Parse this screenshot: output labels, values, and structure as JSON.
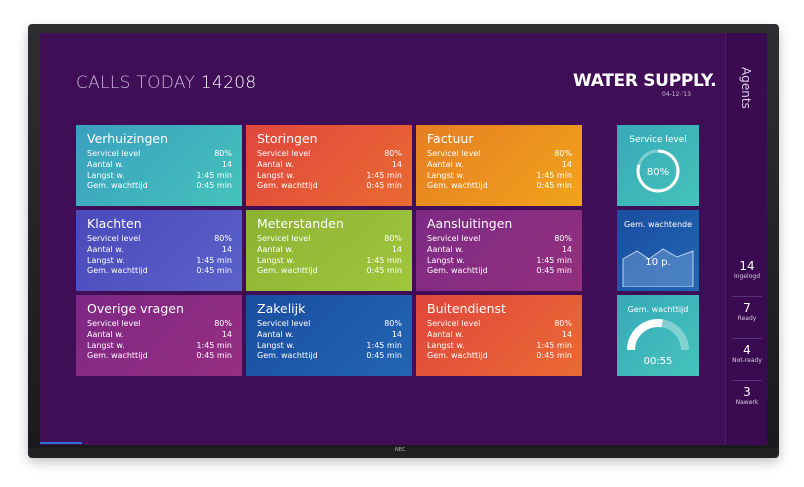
{
  "header": {
    "title_prefix": "CALLS TODAY",
    "title_count": "14208"
  },
  "logo": {
    "text": "WATER SUPPLY.",
    "date": "04-12-'13"
  },
  "monitor_brand": "NEC",
  "labels": {
    "service": "Servicel level",
    "count": "Aantal w.",
    "longest": "Langst w.",
    "avg": "Gem. wachttijd"
  },
  "tiles": [
    {
      "name": "Verhuizingen",
      "service": "80%",
      "count": "14",
      "longest": "1:45 min",
      "avg": "0:45 min",
      "color": "#3fb7be"
    },
    {
      "name": "Storingen",
      "service": "80%",
      "count": "14",
      "longest": "1:45 min",
      "avg": "0:45 min",
      "color": "#e2503a"
    },
    {
      "name": "Factuur",
      "service": "80%",
      "count": "14",
      "longest": "1:45 min",
      "avg": "0:45 min",
      "color": "#eb8f1e"
    },
    {
      "name": "Klachten",
      "service": "80%",
      "count": "14",
      "longest": "1:45 min",
      "avg": "0:45 min",
      "color": "#4a4fbf"
    },
    {
      "name": "Meterstanden",
      "service": "80%",
      "count": "14",
      "longest": "1:45 min",
      "avg": "0:45 min",
      "color": "#8fb836"
    },
    {
      "name": "Aansluitingen",
      "service": "80%",
      "count": "14",
      "longest": "1:45 min",
      "avg": "0:45 min",
      "color": "#8c2f82"
    },
    {
      "name": "Overige vragen",
      "service": "80%",
      "count": "14",
      "longest": "1:45 min",
      "avg": "0:45 min",
      "color": "#8a2a86"
    },
    {
      "name": "Zakelijk",
      "service": "80%",
      "count": "14",
      "longest": "1:45 min",
      "avg": "0:45 min",
      "color": "#1d5aa8"
    },
    {
      "name": "Buitendienst",
      "service": "80%",
      "count": "14",
      "longest": "1:45 min",
      "avg": "0:45 min",
      "color": "#e2503a"
    }
  ],
  "stats": {
    "service_level": {
      "label": "Service level",
      "value": "80%",
      "fraction": 0.8,
      "color": "#3fb7be"
    },
    "waiting": {
      "label": "Gem. wachtende",
      "value": "10 p.",
      "color": "#1d5aa8"
    },
    "wait_time": {
      "label": "Gem. wachttijd",
      "value": "00:55",
      "fraction": 0.55,
      "color": "#3fb7be"
    }
  },
  "sidebar": {
    "title": "Agents",
    "items": [
      {
        "count": "14",
        "label": "Ingelogd"
      },
      {
        "count": "7",
        "label": "Ready"
      },
      {
        "count": "4",
        "label": "Not-ready"
      },
      {
        "count": "3",
        "label": "Nawerk"
      }
    ]
  }
}
